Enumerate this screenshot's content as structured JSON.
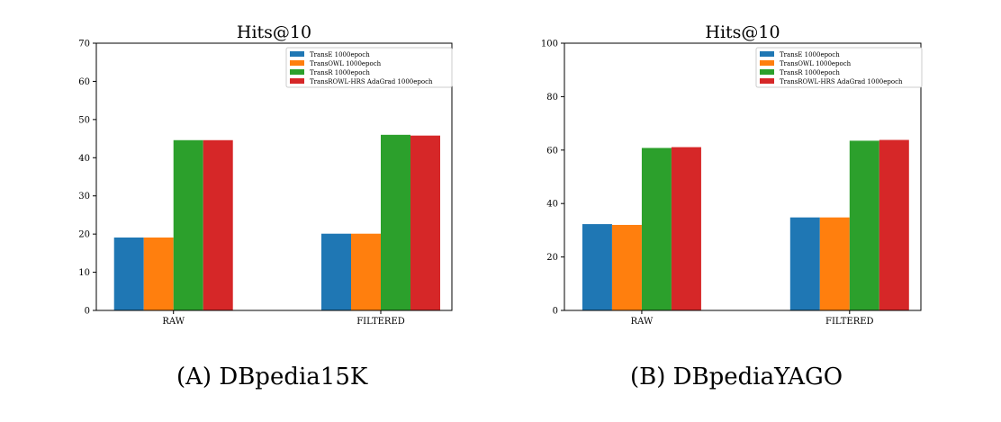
{
  "colors": [
    "#1f77b4",
    "#ff7f0e",
    "#2ca02c",
    "#d62728"
  ],
  "captions": [
    {
      "label": "(A)",
      "text": "DBpedia15K"
    },
    {
      "label": "(B)",
      "text": "DBpediaYAGO"
    }
  ],
  "chart_data": [
    {
      "type": "bar",
      "title": "Hits@10",
      "xlabel": "",
      "ylabel": "",
      "categories": [
        "RAW",
        "FILTERED"
      ],
      "ylim": [
        0,
        70
      ],
      "yticks": [
        0,
        10,
        20,
        30,
        40,
        50,
        60,
        70
      ],
      "grid": false,
      "legend_position": "top-right",
      "series": [
        {
          "name": "TransE 1000epoch",
          "values": [
            19.1,
            20.1
          ]
        },
        {
          "name": "TransOWL 1000epoch",
          "values": [
            19.1,
            20.1
          ]
        },
        {
          "name": "TransR 1000epoch",
          "values": [
            44.6,
            46.0
          ]
        },
        {
          "name": "TransROWL-HRS AdaGrad 1000epoch",
          "values": [
            44.6,
            45.8
          ]
        }
      ]
    },
    {
      "type": "bar",
      "title": "Hits@10",
      "xlabel": "",
      "ylabel": "",
      "categories": [
        "RAW",
        "FILTERED"
      ],
      "ylim": [
        0,
        100
      ],
      "yticks": [
        0,
        20,
        40,
        60,
        80,
        100
      ],
      "grid": false,
      "legend_position": "top-right",
      "series": [
        {
          "name": "TransE 1000epoch",
          "values": [
            32.3,
            34.8
          ]
        },
        {
          "name": "TransOWL 1000epoch",
          "values": [
            32.0,
            34.8
          ]
        },
        {
          "name": "TransR 1000epoch",
          "values": [
            60.8,
            63.5
          ]
        },
        {
          "name": "TransROWL-HRS AdaGrad 1000epoch",
          "values": [
            61.1,
            63.8
          ]
        }
      ]
    }
  ]
}
